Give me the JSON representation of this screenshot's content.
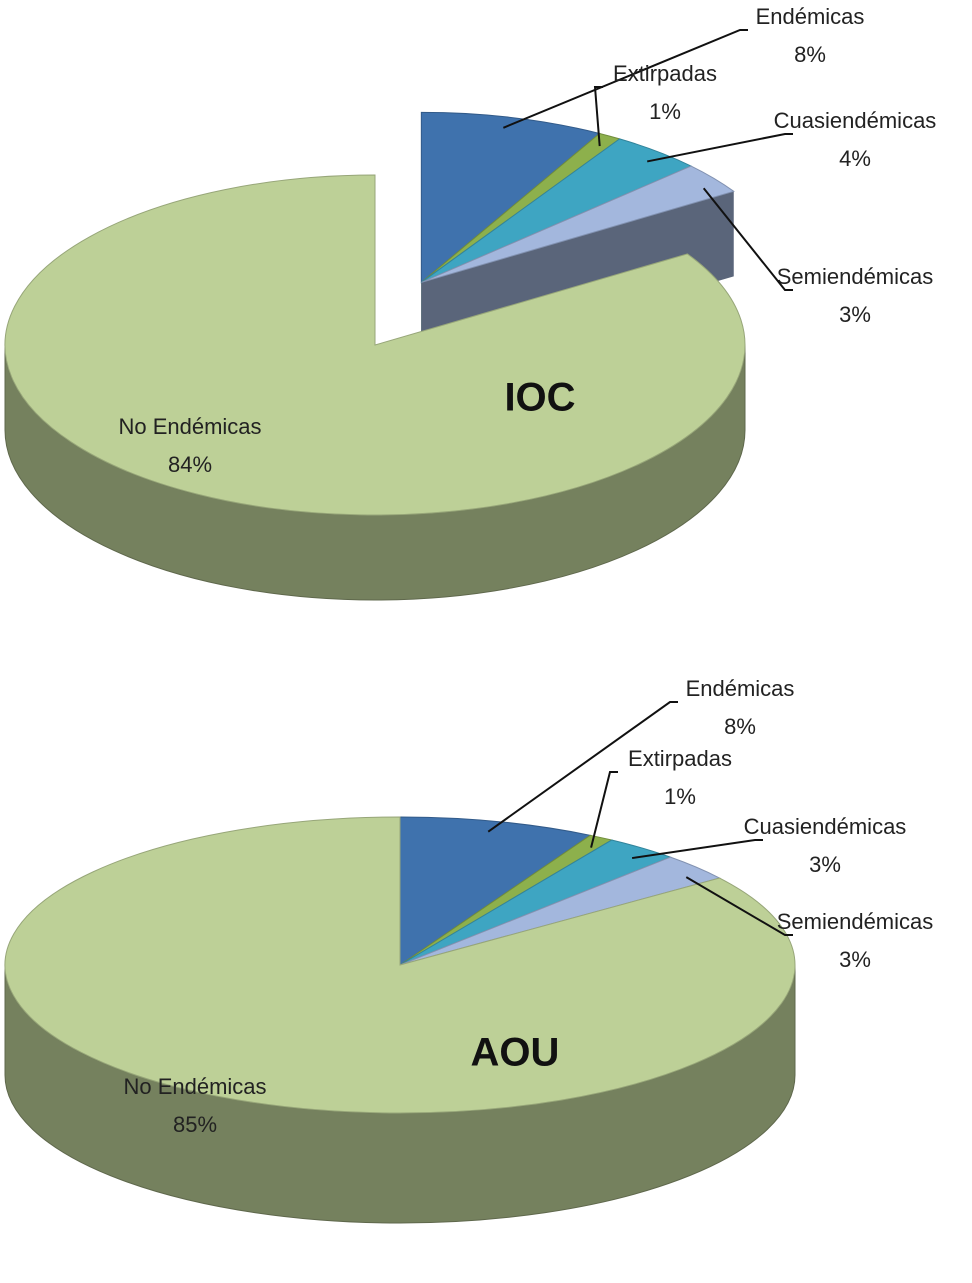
{
  "chart_data": [
    {
      "type": "pie",
      "title": "IOC",
      "categories": [
        "Endémicas",
        "Extirpadas",
        "Cuasiendémicas",
        "Semiendémicas",
        "No Endémicas"
      ],
      "values": [
        8,
        1,
        4,
        3,
        84
      ],
      "value_labels": [
        "8%",
        "1%",
        "4%",
        "3%",
        "84%"
      ],
      "colors": [
        "#3f72ad",
        "#8db04c",
        "#3ea5c2",
        "#a3b7dd",
        "#bdd097"
      ],
      "explode": [
        true,
        true,
        true,
        true,
        false
      ]
    },
    {
      "type": "pie",
      "title": "AOU",
      "categories": [
        "Endémicas",
        "Extirpadas",
        "Cuasiendémicas",
        "Semiendémicas",
        "No Endémicas"
      ],
      "values": [
        8,
        1,
        3,
        3,
        85
      ],
      "value_labels": [
        "8%",
        "1%",
        "3%",
        "3%",
        "85%"
      ],
      "colors": [
        "#3f72ad",
        "#8db04c",
        "#3ea5c2",
        "#a3b7dd",
        "#bdd097"
      ],
      "explode": [
        false,
        false,
        false,
        false,
        false
      ]
    }
  ]
}
